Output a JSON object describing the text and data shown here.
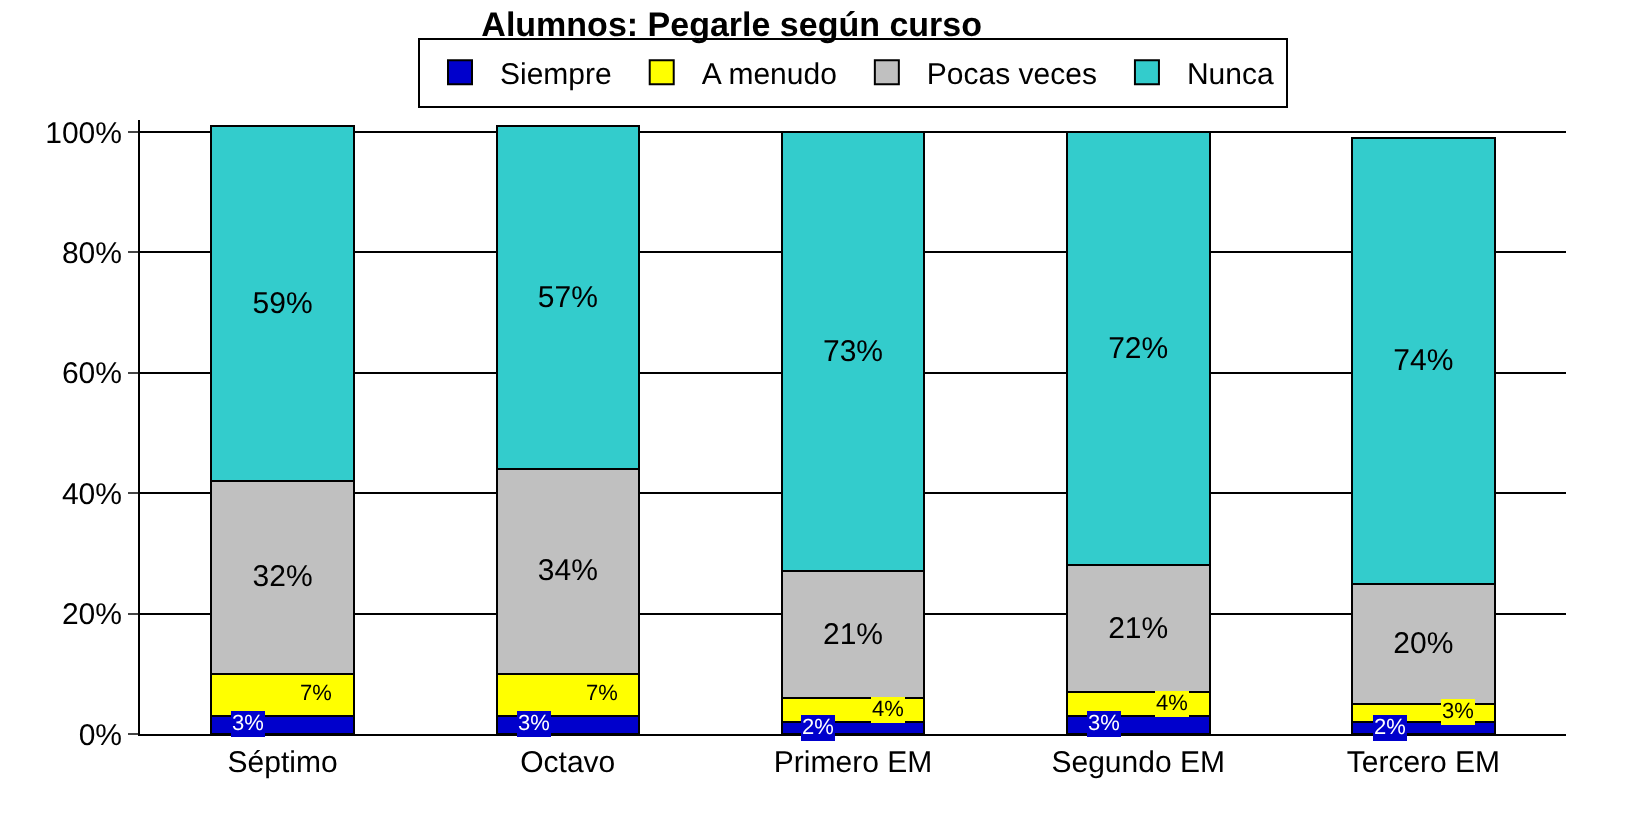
{
  "chart_data": {
    "type": "bar",
    "title": "Alumnos: Pegarle según curso",
    "stacked": true,
    "categories": [
      "Séptimo",
      "Octavo",
      "Primero EM",
      "Segundo EM",
      "Tercero EM"
    ],
    "series": [
      {
        "name": "Siempre",
        "color": "#0000cc",
        "values": [
          3,
          3,
          2,
          3,
          2
        ],
        "value_labels": [
          "3%",
          "3%",
          "2%",
          "3%",
          "2%"
        ]
      },
      {
        "name": "A menudo",
        "color": "#ffff00",
        "values": [
          7,
          7,
          4,
          4,
          3
        ],
        "value_labels": [
          "7%",
          "7%",
          "4%",
          "4%",
          "3%"
        ]
      },
      {
        "name": "Pocas veces",
        "color": "#c0c0c0",
        "values": [
          32,
          34,
          21,
          21,
          20
        ],
        "value_labels": [
          "32%",
          "34%",
          "21%",
          "21%",
          "20%"
        ]
      },
      {
        "name": "Nunca",
        "color": "#33cccc",
        "values": [
          59,
          57,
          73,
          72,
          74
        ],
        "value_labels": [
          "59%",
          "57%",
          "73%",
          "72%",
          "74%"
        ]
      }
    ],
    "ylim": [
      0,
      102
    ],
    "yticks": [
      {
        "value": 0,
        "label": "0%"
      },
      {
        "value": 20,
        "label": "20%"
      },
      {
        "value": 40,
        "label": "40%"
      },
      {
        "value": 60,
        "label": "60%"
      },
      {
        "value": 80,
        "label": "80%"
      },
      {
        "value": 100,
        "label": "100%"
      }
    ],
    "grid": "y",
    "legend": "top"
  }
}
